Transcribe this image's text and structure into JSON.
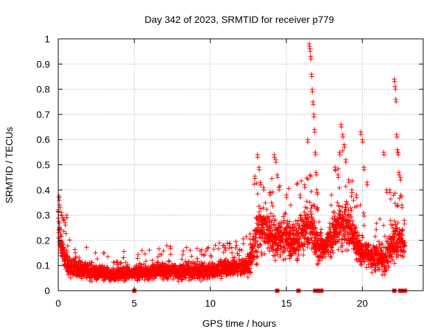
{
  "chart_data": {
    "type": "scatter",
    "title": "Day 342 of 2023, SRMTID for receiver p779",
    "xlabel": "GPS time / hours",
    "ylabel": "SRMTID / TECUs",
    "xlim": [
      0,
      24
    ],
    "ylim": [
      0,
      1
    ],
    "xticks": [
      0,
      5,
      10,
      15,
      20
    ],
    "xtick_labels": [
      "0",
      "5",
      "10",
      "15",
      "20"
    ],
    "yticks": [
      0,
      0.1,
      0.2,
      0.3,
      0.4,
      0.5,
      0.6,
      0.7,
      0.8,
      0.9,
      1
    ],
    "ytick_labels": [
      "0",
      "0.1",
      "0.2",
      "0.3",
      "0.4",
      "0.5",
      "0.6",
      "0.7",
      "0.8",
      "0.9",
      "1"
    ],
    "grid": true,
    "marker": "+",
    "color": "#ff0000",
    "series": [
      {
        "name": "SRMTID",
        "trend": [
          [
            0.0,
            0.3,
            0.06
          ],
          [
            0.1,
            0.22,
            0.06
          ],
          [
            0.3,
            0.15,
            0.05
          ],
          [
            0.5,
            0.11,
            0.04
          ],
          [
            1.0,
            0.09,
            0.03
          ],
          [
            2.0,
            0.08,
            0.03
          ],
          [
            3.0,
            0.07,
            0.025
          ],
          [
            3.5,
            0.06,
            0.02
          ],
          [
            4.0,
            0.07,
            0.025
          ],
          [
            5.0,
            0.07,
            0.025
          ],
          [
            6.0,
            0.075,
            0.025
          ],
          [
            7.0,
            0.08,
            0.03
          ],
          [
            8.0,
            0.075,
            0.03
          ],
          [
            9.0,
            0.08,
            0.03
          ],
          [
            10.0,
            0.08,
            0.03
          ],
          [
            11.0,
            0.09,
            0.03
          ],
          [
            12.0,
            0.09,
            0.03
          ],
          [
            12.6,
            0.11,
            0.04
          ],
          [
            13.0,
            0.22,
            0.09
          ],
          [
            13.5,
            0.26,
            0.08
          ],
          [
            14.0,
            0.22,
            0.08
          ],
          [
            14.5,
            0.2,
            0.07
          ],
          [
            15.0,
            0.23,
            0.07
          ],
          [
            15.5,
            0.19,
            0.07
          ],
          [
            16.0,
            0.22,
            0.07
          ],
          [
            16.6,
            0.28,
            0.09
          ],
          [
            17.0,
            0.18,
            0.06
          ],
          [
            17.5,
            0.17,
            0.05
          ],
          [
            18.0,
            0.21,
            0.06
          ],
          [
            18.5,
            0.27,
            0.08
          ],
          [
            19.0,
            0.26,
            0.09
          ],
          [
            19.5,
            0.2,
            0.06
          ],
          [
            20.0,
            0.15,
            0.05
          ],
          [
            20.5,
            0.14,
            0.05
          ],
          [
            21.0,
            0.13,
            0.05
          ],
          [
            21.5,
            0.12,
            0.05
          ],
          [
            22.0,
            0.2,
            0.07
          ],
          [
            22.5,
            0.21,
            0.06
          ],
          [
            22.8,
            0.17,
            0.05
          ]
        ],
        "peaks": [
          [
            0.05,
            0.37
          ],
          [
            0.1,
            0.34
          ],
          [
            0.2,
            0.31
          ],
          [
            0.3,
            0.29
          ],
          [
            0.45,
            0.27
          ],
          [
            0.55,
            0.3
          ],
          [
            10.9,
            0.18
          ],
          [
            11.0,
            0.17
          ],
          [
            13.1,
            0.54
          ],
          [
            13.2,
            0.49
          ],
          [
            13.3,
            0.43
          ],
          [
            13.5,
            0.41
          ],
          [
            13.9,
            0.39
          ],
          [
            14.2,
            0.54
          ],
          [
            14.3,
            0.52
          ],
          [
            14.4,
            0.46
          ],
          [
            14.5,
            0.41
          ],
          [
            15.0,
            0.38
          ],
          [
            15.9,
            0.38
          ],
          [
            16.2,
            0.42
          ],
          [
            16.4,
            0.6
          ],
          [
            16.5,
            0.98
          ],
          [
            16.55,
            0.96
          ],
          [
            16.6,
            0.93
          ],
          [
            16.65,
            0.86
          ],
          [
            16.7,
            0.8
          ],
          [
            16.75,
            0.75
          ],
          [
            16.8,
            0.7
          ],
          [
            16.85,
            0.64
          ],
          [
            16.9,
            0.55
          ],
          [
            16.95,
            0.47
          ],
          [
            17.0,
            0.4
          ],
          [
            17.05,
            0.33
          ],
          [
            18.2,
            0.49
          ],
          [
            18.4,
            0.46
          ],
          [
            18.5,
            0.55
          ],
          [
            18.6,
            0.66
          ],
          [
            18.7,
            0.62
          ],
          [
            18.8,
            0.58
          ],
          [
            18.9,
            0.52
          ],
          [
            19.1,
            0.44
          ],
          [
            19.3,
            0.4
          ],
          [
            19.6,
            0.38
          ],
          [
            19.9,
            0.63
          ],
          [
            20.0,
            0.6
          ],
          [
            20.1,
            0.49
          ],
          [
            20.3,
            0.43
          ],
          [
            21.4,
            0.55
          ],
          [
            21.6,
            0.4
          ],
          [
            21.8,
            0.4
          ],
          [
            22.1,
            0.84
          ],
          [
            22.15,
            0.81
          ],
          [
            22.2,
            0.76
          ],
          [
            22.25,
            0.62
          ],
          [
            22.3,
            0.56
          ],
          [
            22.35,
            0.55
          ],
          [
            22.4,
            0.47
          ],
          [
            22.5,
            0.45
          ],
          [
            22.6,
            0.34
          ]
        ]
      }
    ],
    "flags": [
      {
        "x": 5.0,
        "x_end": 5.0
      },
      {
        "x": 14.4,
        "x_end": 14.4
      },
      {
        "x": 15.8,
        "x_end": 15.8
      },
      {
        "x": 16.9,
        "x_end": 17.3
      },
      {
        "x": 22.1,
        "x_end": 22.1
      },
      {
        "x": 22.5,
        "x_end": 22.8
      }
    ]
  }
}
